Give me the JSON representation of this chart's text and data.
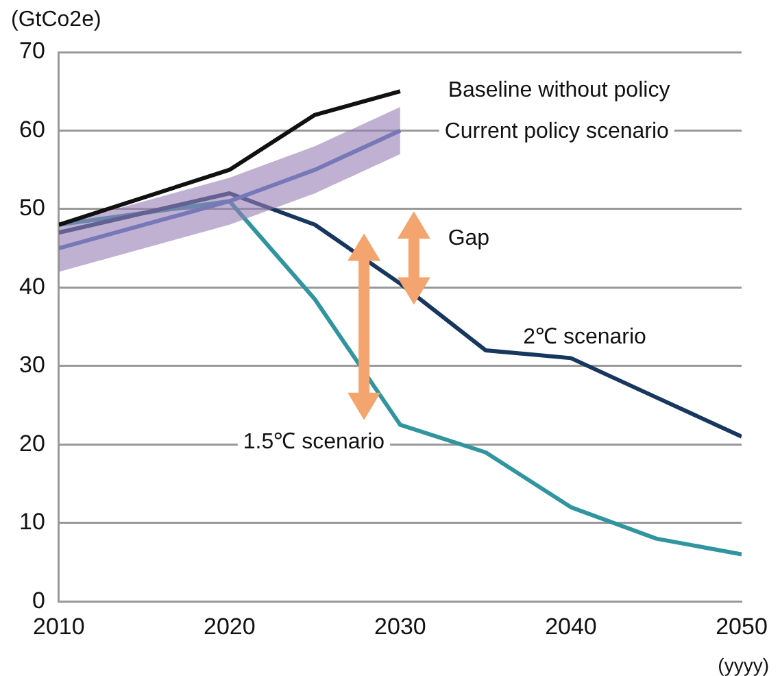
{
  "chart_data": {
    "type": "line",
    "xlabel": "(yyyy)",
    "ylabel": "(GtCo2e)",
    "xlim": [
      2010,
      2050
    ],
    "xticks": [
      2010,
      2020,
      2030,
      2040,
      2050
    ],
    "ylim": [
      0,
      70
    ],
    "yticks": [
      0,
      10,
      20,
      30,
      40,
      50,
      60,
      70
    ],
    "grid": "y",
    "legend": false,
    "marker": "none",
    "line_style": "solid",
    "annotations": [
      "Gap"
    ],
    "series": [
      {
        "name": "Baseline without policy",
        "color": "#111111",
        "x": [
          2010,
          2020,
          2025,
          2030
        ],
        "values": [
          48,
          55,
          62,
          65
        ]
      },
      {
        "name": "Current policy scenario",
        "color": "#4a70bd",
        "x": [
          2010,
          2020,
          2025,
          2030
        ],
        "values": [
          45,
          51,
          55,
          60
        ],
        "lower": [
          42,
          48,
          52,
          57
        ],
        "upper": [
          48,
          54,
          58,
          63
        ]
      },
      {
        "name": "2℃ scenario",
        "color": "#17375e",
        "x": [
          2010,
          2020,
          2025,
          2030,
          2035,
          2040,
          2045,
          2050
        ],
        "values": [
          47,
          52,
          48,
          40.5,
          32,
          31,
          26,
          21
        ]
      },
      {
        "name": "1.5℃ scenario",
        "color": "#31959f",
        "x": [
          2010,
          2020,
          2025,
          2030,
          2035,
          2040,
          2045,
          2050
        ],
        "values": [
          48,
          51,
          38.5,
          22.5,
          19,
          12,
          8,
          6
        ]
      }
    ]
  }
}
